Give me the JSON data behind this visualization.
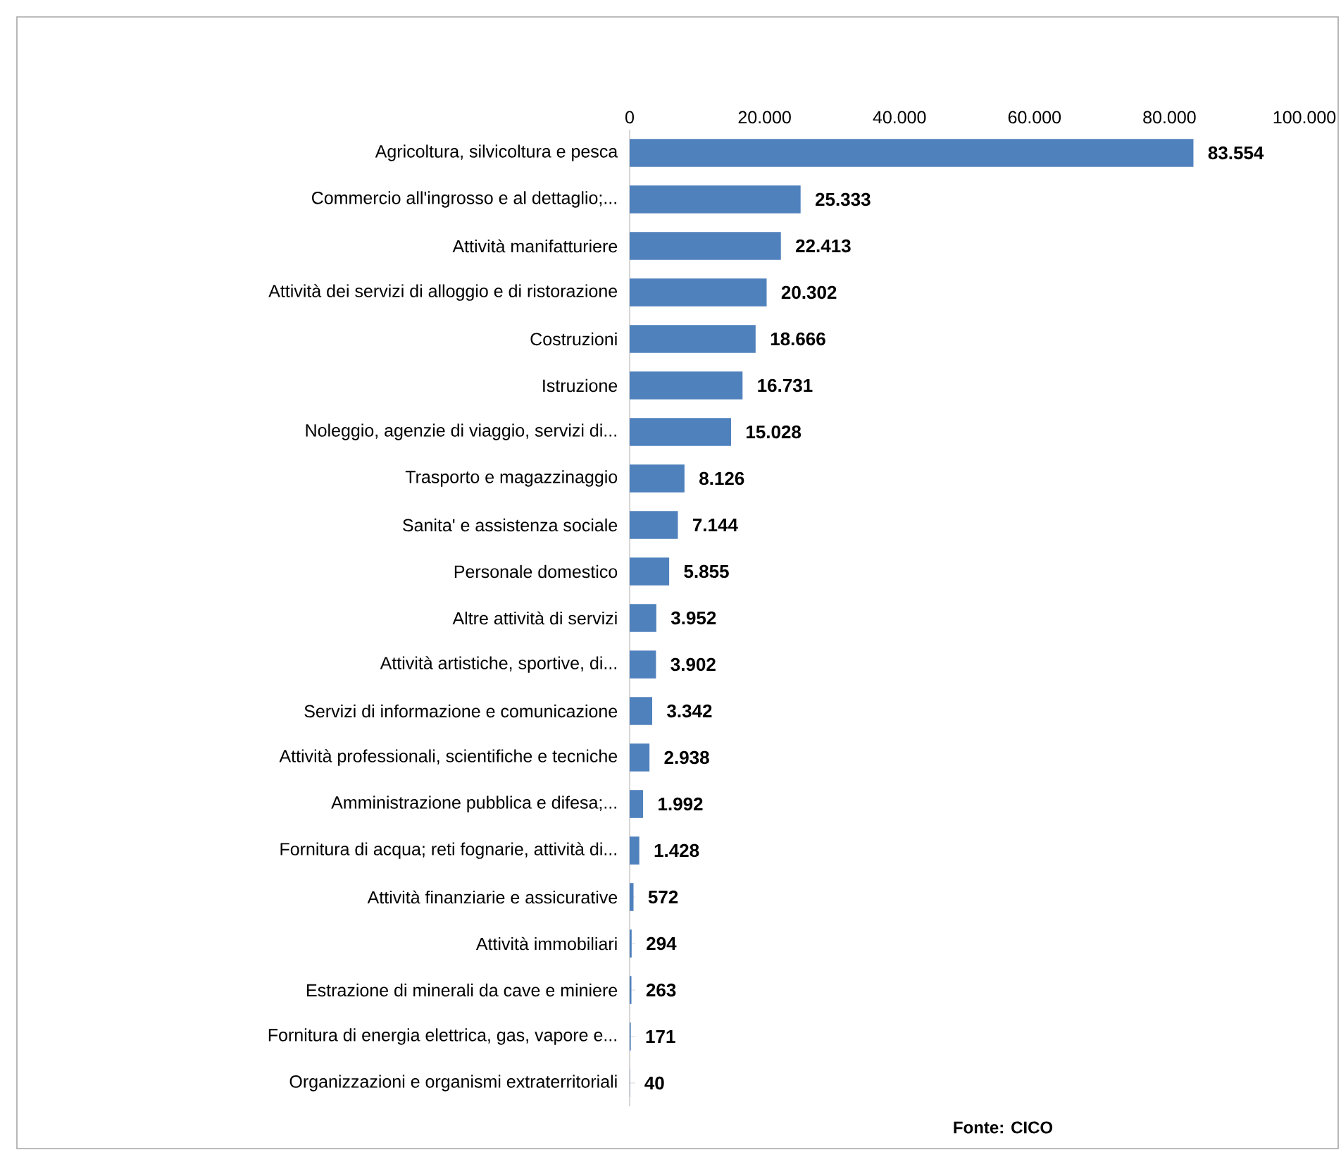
{
  "chart_data": {
    "type": "bar",
    "orientation": "horizontal",
    "categories": [
      "Agricoltura, silvicoltura e pesca",
      "Commercio all'ingrosso e al dettaglio;...",
      "Attività manifatturiere",
      "Attività dei servizi di alloggio e di ristorazione",
      "Costruzioni",
      "Istruzione",
      "Noleggio, agenzie di viaggio, servizi di...",
      "Trasporto e magazzinaggio",
      "Sanita' e assistenza sociale",
      "Personale domestico",
      "Altre attività di servizi",
      "Attività artistiche, sportive, di...",
      "Servizi di informazione e comunicazione",
      "Attività professionali, scientifiche e tecniche",
      "Amministrazione pubblica e difesa;...",
      "Fornitura di acqua; reti fognarie, attività di...",
      "Attività finanziarie e assicurative",
      "Attività immobiliari",
      "Estrazione di minerali da cave e miniere",
      "Fornitura di energia elettrica, gas, vapore e...",
      "Organizzazioni e organismi extraterritoriali"
    ],
    "values": [
      83554,
      25333,
      22413,
      20302,
      18666,
      16731,
      15028,
      8126,
      7144,
      5855,
      3952,
      3902,
      3342,
      2938,
      1992,
      1428,
      572,
      294,
      263,
      171,
      40
    ],
    "value_labels": [
      "83.554",
      "25.333",
      "22.413",
      "20.302",
      "18.666",
      "16.731",
      "15.028",
      "8.126",
      "7.144",
      "5.855",
      "3.952",
      "3.902",
      "3.342",
      "2.938",
      "1.992",
      "1.428",
      "572",
      "294",
      "263",
      "171",
      "40"
    ],
    "color": "#4f81bd",
    "xlim": [
      0,
      100000
    ],
    "xticks": [
      0,
      {
        "value": 20000,
        "label": "20.000"
      },
      {
        "value": 40000,
        "label": "40.000"
      },
      {
        "value": 60000,
        "label": "60.000"
      },
      {
        "value": 80000,
        "label": "80.000"
      },
      {
        "value": 100000,
        "label": "100.000"
      }
    ],
    "annotations": [
      "Fonte: CICO"
    ]
  }
}
